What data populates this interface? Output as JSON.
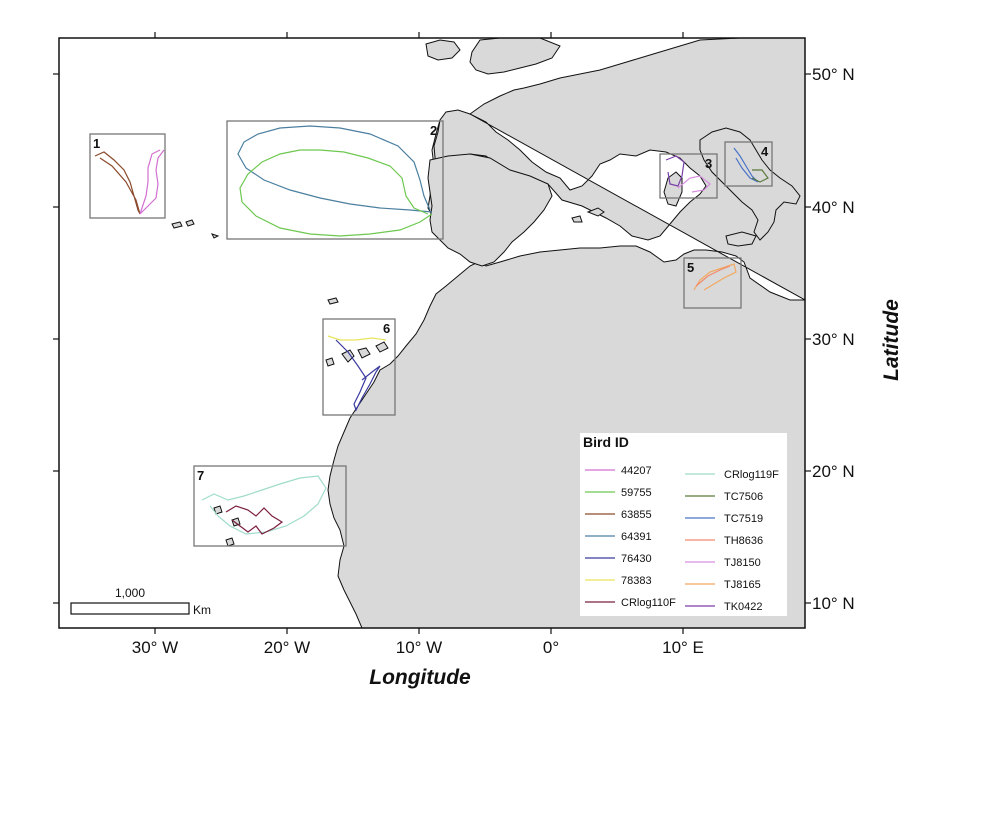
{
  "map": {
    "x_axis_title": "Longitude",
    "y_axis_title": "Latitude",
    "x_ticks": [
      "30° W",
      "20° W",
      "10° W",
      "0°",
      "10° E"
    ],
    "y_ticks": [
      "50° N",
      "40° N",
      "30° N",
      "20° N",
      "10° N"
    ],
    "colors": {
      "land": "#d9d9d9",
      "sea": "#ffffff",
      "coast": "#111111",
      "box": "#777777"
    }
  },
  "boxes": [
    "1",
    "2",
    "3",
    "4",
    "5",
    "6",
    "7"
  ],
  "legend": {
    "title": "Bird ID",
    "items": [
      {
        "label": "44207",
        "color": "#d36fd0"
      },
      {
        "label": "59755",
        "color": "#6dc84f"
      },
      {
        "label": "63855",
        "color": "#8b4a2b"
      },
      {
        "label": "64391",
        "color": "#4b7fa0"
      },
      {
        "label": "76430",
        "color": "#3a3aa0"
      },
      {
        "label": "78383",
        "color": "#e6e45a"
      },
      {
        "label": "CRlog110F",
        "color": "#7a1d3e"
      },
      {
        "label": "CRlog119F",
        "color": "#9fdccb"
      },
      {
        "label": "TC7506",
        "color": "#5a7a3a"
      },
      {
        "label": "TC7519",
        "color": "#4a73c8"
      },
      {
        "label": "TH8636",
        "color": "#f08a6c"
      },
      {
        "label": "TJ8150",
        "color": "#d78ee0"
      },
      {
        "label": "TJ8165",
        "color": "#f2a860"
      },
      {
        "label": "TK0422",
        "color": "#7a3fa8"
      }
    ]
  },
  "scale_bar": {
    "value": "1,000",
    "unit": "Km"
  }
}
